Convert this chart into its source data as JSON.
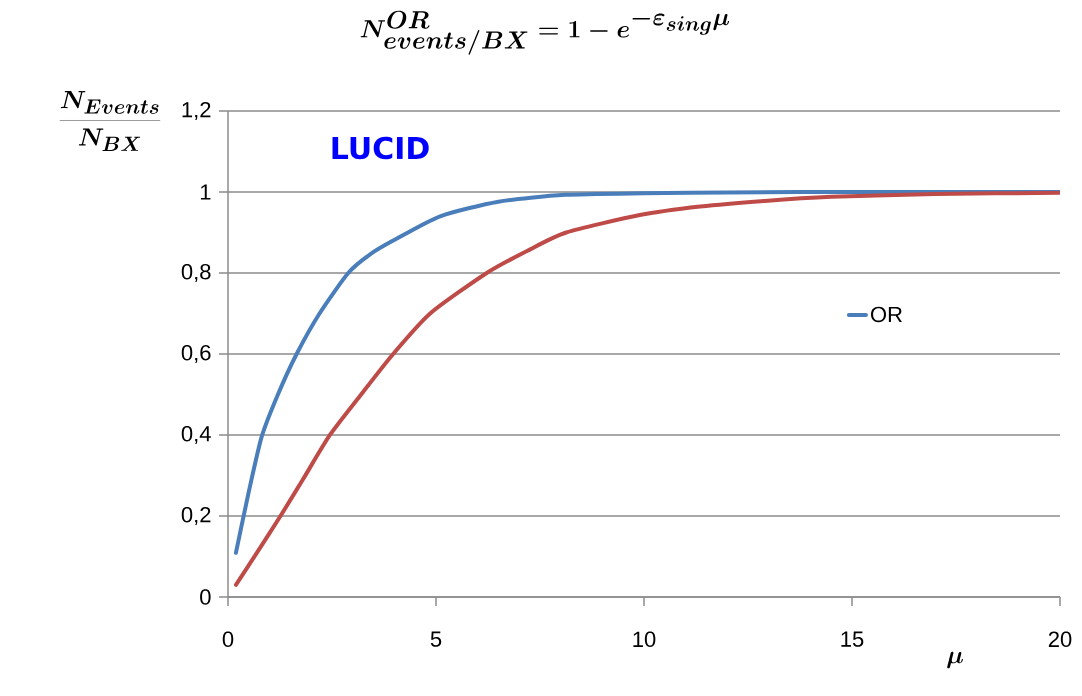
{
  "chart_data": {
    "type": "line",
    "title": "N^{OR}_{events/BX} = 1 - e^{-\\varepsilon_{sing}\\mu}",
    "ylabel": "\\frac{N_{Events}}{N_{BX}}",
    "xlabel": "\\mu",
    "annotations": [
      "LUCID"
    ],
    "series": [
      {
        "name": "OR",
        "color": "#4a7ebb",
        "x": [
          0.19,
          0.5,
          0.81,
          1.2,
          1.65,
          2.2,
          2.89,
          3.4,
          3.97,
          5.1,
          6.5,
          8.1,
          10,
          12,
          15,
          20
        ],
        "values": [
          0.109,
          0.26,
          0.396,
          0.5,
          0.6,
          0.7,
          0.8,
          0.845,
          0.88,
          0.94,
          0.976,
          0.993,
          0.997,
          0.999,
          1.0,
          1.0
        ]
      },
      {
        "color": "#be4b48",
        "x": [
          0.19,
          0.7,
          1.25,
          1.8,
          2.45,
          3.2,
          3.97,
          4.86,
          6.22,
          7.2,
          8.13,
          9.9,
          11.35,
          12.9,
          14.5,
          17,
          20
        ],
        "values": [
          0.03,
          0.11,
          0.198,
          0.29,
          0.4,
          0.5,
          0.6,
          0.7,
          0.8,
          0.855,
          0.9,
          0.943,
          0.964,
          0.978,
          0.988,
          0.995,
          0.998
        ]
      }
    ],
    "xlim": [
      0,
      20
    ],
    "ylim": [
      0,
      1.2
    ],
    "xticks": [
      0,
      5,
      10,
      15,
      20
    ],
    "yticks": [
      0,
      {
        "value": 0.2,
        "label": "0,2"
      },
      {
        "value": 0.4,
        "label": "0,4"
      },
      {
        "value": 0.6,
        "label": "0,6"
      },
      {
        "value": 0.8,
        "label": "0,8"
      },
      1,
      {
        "value": 1.2,
        "label": "1,2"
      }
    ],
    "grid": "y",
    "legend": "right",
    "marker": "none",
    "line_style": "solid"
  }
}
